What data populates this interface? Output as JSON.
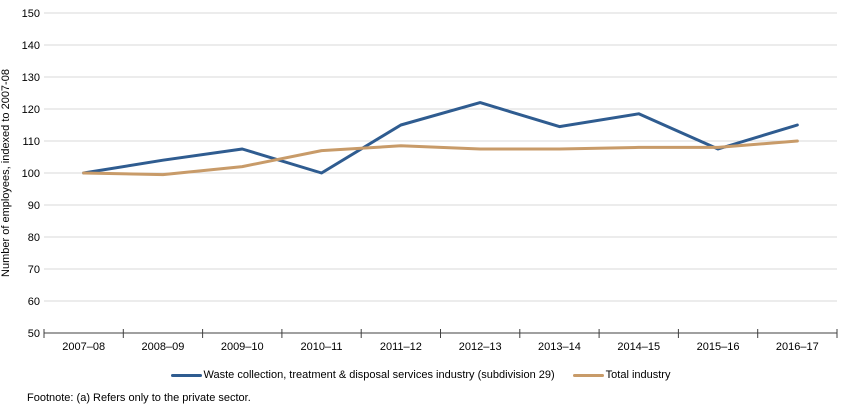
{
  "chart": {
    "y_axis_title": "Number of employees, indexed to 2007-08",
    "footnote": "Footnote: (a) Refers only to the private sector.",
    "colors": {
      "gridline": "#d9d9d9",
      "axis_line": "#404040",
      "text": "#000000",
      "series_waste": "#2f5c90",
      "series_total": "#c89b69"
    }
  },
  "chart_data": {
    "type": "line",
    "title": "",
    "xlabel": "",
    "ylabel": "Number of employees, indexed to 2007-08",
    "categories": [
      "2007–08",
      "2008–09",
      "2009–10",
      "2010–11",
      "2011–12",
      "2012–13",
      "2013–14",
      "2014–15",
      "2015–16",
      "2016–17"
    ],
    "series": [
      {
        "name": "Waste collection, treatment & disposal services industry (subdivision 29)",
        "color": "#2f5c90",
        "values": [
          100,
          104,
          107.5,
          100,
          115,
          122,
          114.5,
          118.5,
          107.5,
          115
        ]
      },
      {
        "name": "Total industry",
        "color": "#c89b69",
        "values": [
          100,
          99.5,
          102,
          107,
          108.5,
          107.5,
          107.5,
          108,
          108,
          110
        ]
      }
    ],
    "ylim": [
      50,
      150
    ],
    "ytick_step": 10,
    "yticks": [
      50,
      60,
      70,
      80,
      90,
      100,
      110,
      120,
      130,
      140,
      150
    ],
    "grid": true,
    "legend_position": "bottom"
  }
}
